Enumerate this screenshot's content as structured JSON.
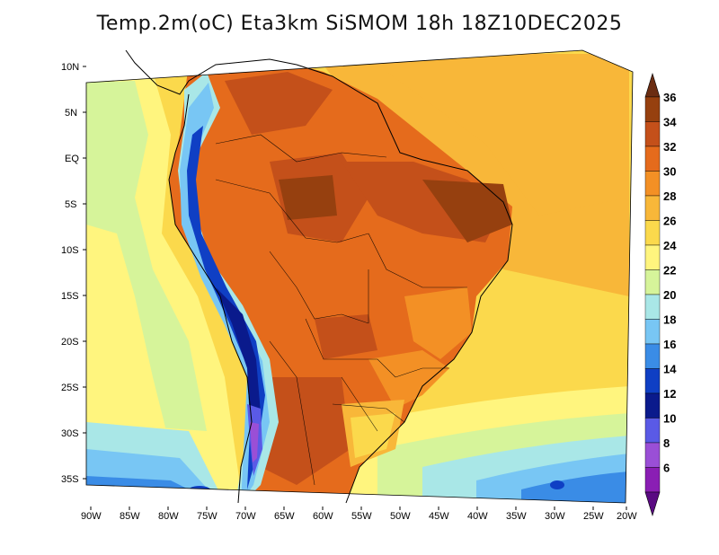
{
  "title": "Temp.2m(oC) Eta3km SiSMOM 18h 18Z10DEC2025",
  "lat_ticks": [
    "10N",
    "5N",
    "EQ",
    "5S",
    "10S",
    "15S",
    "20S",
    "25S",
    "30S",
    "35S"
  ],
  "lon_ticks": [
    "90W",
    "85W",
    "80W",
    "75W",
    "70W",
    "65W",
    "60W",
    "55W",
    "50W",
    "45W",
    "40W",
    "35W",
    "30W",
    "25W",
    "20W"
  ],
  "colorbar": {
    "labels": [
      "36",
      "34",
      "32",
      "30",
      "28",
      "26",
      "24",
      "22",
      "20",
      "18",
      "16",
      "14",
      "12",
      "10",
      "8",
      "6"
    ],
    "colors": [
      "#6b2d12",
      "#96400f",
      "#c4501a",
      "#e56b1c",
      "#f39025",
      "#f8b739",
      "#fbd94c",
      "#fff57e",
      "#d6f49a",
      "#a9e7e7",
      "#78c6f4",
      "#3a8ce6",
      "#0f3fc4",
      "#0a1a8c",
      "#5a5ae6",
      "#9a4fd6",
      "#8a1eb4",
      "#5a0a82"
    ]
  }
}
